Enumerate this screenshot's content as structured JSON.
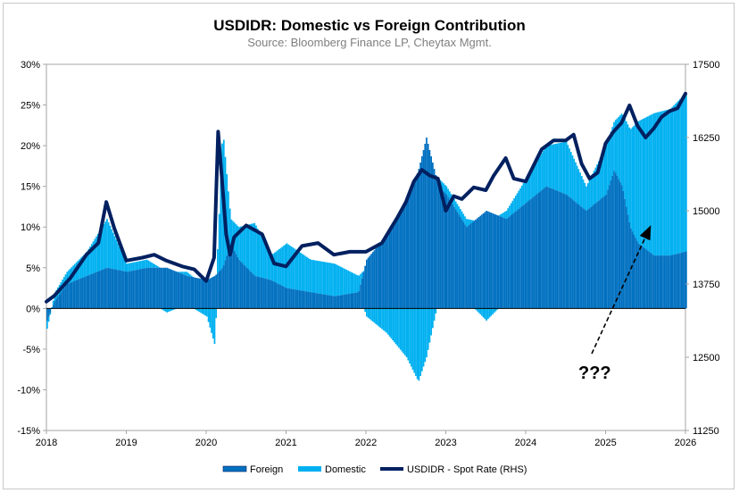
{
  "chart_data": {
    "type": "area",
    "title": "USDIDR: Domestic vs Foreign Contribution",
    "subtitle": "Source: Bloomberg Finance LP, Cheytax Mgmt.",
    "x_range": [
      2018,
      2026
    ],
    "x_ticks": [
      "2018",
      "2019",
      "2020",
      "2021",
      "2022",
      "2023",
      "2024",
      "2025",
      "2026"
    ],
    "y_left": {
      "ylim": [
        -15,
        30
      ],
      "ticks": [
        "-15%",
        "-10%",
        "-5%",
        "0%",
        "5%",
        "10%",
        "15%",
        "20%",
        "25%",
        "30%"
      ],
      "tick_values": [
        -15,
        -10,
        -5,
        0,
        5,
        10,
        15,
        20,
        25,
        30
      ]
    },
    "y_right": {
      "ylim": [
        11250,
        17500
      ],
      "ticks": [
        "11250",
        "12500",
        "13750",
        "15000",
        "16250",
        "17500"
      ],
      "tick_values": [
        11250,
        12500,
        13750,
        15000,
        16250,
        17500
      ]
    },
    "colors": {
      "foreign": "#0070c0",
      "domestic": "#00b0f0",
      "spot": "#002060"
    },
    "series": [
      {
        "name": "Foreign",
        "axis": "left",
        "x": [
          2018.0,
          2018.1,
          2018.25,
          2018.5,
          2018.75,
          2019.0,
          2019.25,
          2019.5,
          2019.75,
          2020.0,
          2020.1,
          2020.2,
          2020.3,
          2020.4,
          2020.6,
          2020.8,
          2021.0,
          2021.3,
          2021.6,
          2021.9,
          2022.0,
          2022.25,
          2022.5,
          2022.65,
          2022.75,
          2022.9,
          2023.0,
          2023.25,
          2023.5,
          2023.75,
          2024.0,
          2024.25,
          2024.5,
          2024.75,
          2025.0,
          2025.1,
          2025.2,
          2025.3,
          2025.4,
          2025.6,
          2025.8,
          2026.0
        ],
        "values": [
          -1.5,
          1.0,
          3.0,
          4.0,
          5.0,
          4.5,
          5.0,
          5.0,
          4.0,
          3.5,
          4.0,
          5.0,
          8.0,
          6.0,
          4.0,
          3.5,
          2.5,
          2.0,
          1.5,
          2.0,
          6.0,
          9.0,
          13.0,
          17.0,
          21.0,
          15.0,
          14.0,
          10.0,
          12.0,
          11.0,
          13.0,
          15.0,
          14.0,
          12.0,
          14.0,
          17.0,
          15.0,
          10.0,
          8.0,
          6.5,
          6.5,
          7.0
        ]
      },
      {
        "name": "Domestic",
        "axis": "left",
        "x": [
          2018.0,
          2018.1,
          2018.25,
          2018.5,
          2018.75,
          2019.0,
          2019.25,
          2019.5,
          2019.75,
          2020.0,
          2020.1,
          2020.2,
          2020.3,
          2020.4,
          2020.6,
          2020.8,
          2021.0,
          2021.3,
          2021.6,
          2021.9,
          2022.0,
          2022.25,
          2022.5,
          2022.65,
          2022.75,
          2022.9,
          2023.0,
          2023.25,
          2023.5,
          2023.75,
          2024.0,
          2024.25,
          2024.5,
          2024.75,
          2025.0,
          2025.1,
          2025.2,
          2025.3,
          2025.4,
          2025.6,
          2025.8,
          2026.0
        ],
        "values": [
          -1.0,
          1.0,
          1.5,
          3.0,
          6.0,
          1.0,
          1.0,
          -0.5,
          0.5,
          -1.0,
          -4.5,
          17.0,
          3.0,
          4.0,
          6.5,
          3.0,
          5.5,
          4.0,
          4.0,
          2.0,
          -1.0,
          -3.0,
          -6.0,
          -9.0,
          -6.0,
          1.0,
          1.0,
          1.0,
          -1.5,
          1.0,
          3.0,
          5.0,
          6.5,
          3.0,
          6.0,
          6.0,
          9.0,
          12.0,
          15.0,
          17.5,
          18.0,
          19.5
        ]
      },
      {
        "name": "USDIDR - Spot Rate (RHS)",
        "axis": "right",
        "x": [
          2018.0,
          2018.1,
          2018.3,
          2018.5,
          2018.65,
          2018.75,
          2018.85,
          2019.0,
          2019.2,
          2019.35,
          2019.5,
          2019.7,
          2019.85,
          2020.0,
          2020.1,
          2020.15,
          2020.2,
          2020.25,
          2020.3,
          2020.35,
          2020.5,
          2020.7,
          2020.85,
          2021.0,
          2021.2,
          2021.4,
          2021.6,
          2021.8,
          2022.0,
          2022.2,
          2022.4,
          2022.5,
          2022.6,
          2022.7,
          2022.8,
          2022.9,
          2023.0,
          2023.1,
          2023.2,
          2023.35,
          2023.5,
          2023.6,
          2023.75,
          2023.85,
          2024.0,
          2024.2,
          2024.35,
          2024.5,
          2024.6,
          2024.7,
          2024.8,
          2024.9,
          2025.0,
          2025.1,
          2025.2,
          2025.3,
          2025.4,
          2025.5,
          2025.6,
          2025.7,
          2025.8,
          2025.9,
          2026.0
        ],
        "values": [
          13450,
          13550,
          13850,
          14250,
          14450,
          15150,
          14700,
          14150,
          14200,
          14250,
          14150,
          14050,
          14000,
          13800,
          14200,
          16350,
          15500,
          14600,
          14250,
          14550,
          14750,
          14600,
          14100,
          14050,
          14400,
          14450,
          14250,
          14300,
          14300,
          14450,
          14900,
          15150,
          15500,
          15700,
          15600,
          15550,
          15000,
          15250,
          15200,
          15400,
          15350,
          15600,
          15900,
          15550,
          15500,
          16050,
          16200,
          16200,
          16300,
          15800,
          15550,
          15650,
          16150,
          16350,
          16500,
          16800,
          16450,
          16250,
          16400,
          16600,
          16700,
          16750,
          17000
        ]
      }
    ],
    "legend": {
      "placement": "bottom",
      "entries": [
        "Foreign",
        "Domestic",
        "USDIDR - Spot Rate (RHS)"
      ]
    },
    "annotations": [
      {
        "text": "???"
      }
    ],
    "grid": false
  }
}
